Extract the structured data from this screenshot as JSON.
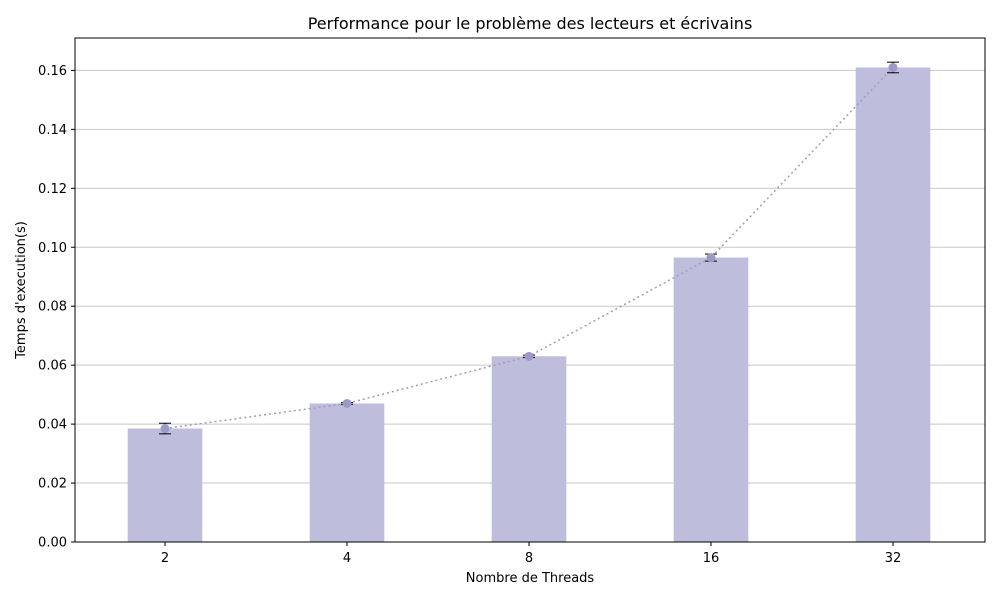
{
  "chart_data": {
    "type": "bar",
    "title": "Performance pour le problème des lecteurs et écrivains",
    "xlabel": "Nombre de Threads",
    "ylabel": "Temps d'execution(s)",
    "categories": [
      "2",
      "4",
      "8",
      "16",
      "32"
    ],
    "values": [
      0.0385,
      0.047,
      0.063,
      0.0965,
      0.161
    ],
    "errors": [
      0.0018,
      0.0003,
      0.0004,
      0.0012,
      0.0018
    ],
    "ylim": [
      0,
      0.171
    ],
    "yticks": [
      "0.00",
      "0.02",
      "0.04",
      "0.06",
      "0.08",
      "0.10",
      "0.12",
      "0.14",
      "0.16"
    ],
    "grid": "horizontal",
    "colors": {
      "bar": "#bebddb",
      "line": "#9e9ac8",
      "marker": "#9e9ac8",
      "grid": "#c8c8c8",
      "errorbar": "#000000"
    },
    "line_style": "dotted"
  }
}
